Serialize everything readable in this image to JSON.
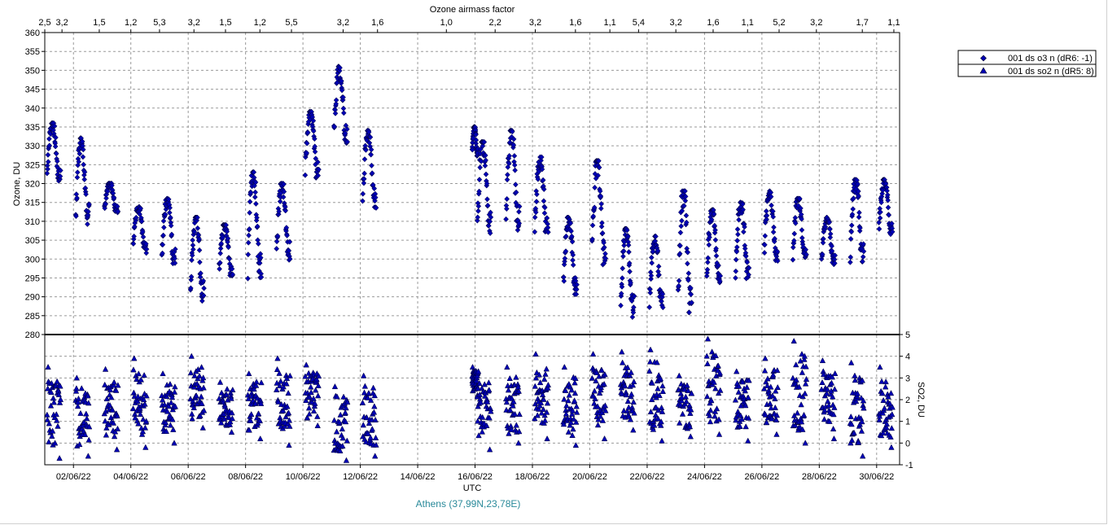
{
  "chart_data": {
    "type": "scatter",
    "top_axis_title": "Ozone airmass factor",
    "top_axis_labels": [
      {
        "label": "2,5",
        "day": 1.0
      },
      {
        "label": "3,2",
        "day": 1.6
      },
      {
        "label": "1,5",
        "day": 2.9
      },
      {
        "label": "1,2",
        "day": 4.0
      },
      {
        "label": "5,3",
        "day": 5.0
      },
      {
        "label": "3,2",
        "day": 6.2
      },
      {
        "label": "1,5",
        "day": 7.3
      },
      {
        "label": "1,2",
        "day": 8.5
      },
      {
        "label": "5,5",
        "day": 9.6
      },
      {
        "label": "3,2",
        "day": 11.4
      },
      {
        "label": "1,6",
        "day": 12.6
      },
      {
        "label": "1,0",
        "day": 15.0
      },
      {
        "label": "2,2",
        "day": 16.7
      },
      {
        "label": "3,2",
        "day": 18.1
      },
      {
        "label": "1,6",
        "day": 19.5
      },
      {
        "label": "1,1",
        "day": 20.7
      },
      {
        "label": "5,4",
        "day": 21.7
      },
      {
        "label": "3,2",
        "day": 23.0
      },
      {
        "label": "1,6",
        "day": 24.3
      },
      {
        "label": "1,1",
        "day": 25.5
      },
      {
        "label": "5,2",
        "day": 26.6
      },
      {
        "label": "3,2",
        "day": 27.9
      },
      {
        "label": "1,7",
        "day": 29.5
      },
      {
        "label": "1,1",
        "day": 30.6
      }
    ],
    "x_axis_title": "UTC",
    "x_range_days": [
      1.0,
      30.8
    ],
    "x_ticks": [
      {
        "label": "02/06/22",
        "day": 2
      },
      {
        "label": "04/06/22",
        "day": 4
      },
      {
        "label": "06/06/22",
        "day": 6
      },
      {
        "label": "08/06/22",
        "day": 8
      },
      {
        "label": "10/06/22",
        "day": 10
      },
      {
        "label": "12/06/22",
        "day": 12
      },
      {
        "label": "14/06/22",
        "day": 14
      },
      {
        "label": "16/06/22",
        "day": 16
      },
      {
        "label": "18/06/22",
        "day": 18
      },
      {
        "label": "20/06/22",
        "day": 20
      },
      {
        "label": "22/06/22",
        "day": 22
      },
      {
        "label": "24/06/22",
        "day": 24
      },
      {
        "label": "26/06/22",
        "day": 26
      },
      {
        "label": "28/06/22",
        "day": 28
      },
      {
        "label": "30/06/22",
        "day": 30
      }
    ],
    "ozone_axis": {
      "title": "Ozone, DU",
      "min": 280,
      "max": 360,
      "ticks": [
        280,
        285,
        290,
        295,
        300,
        305,
        310,
        315,
        320,
        325,
        330,
        335,
        340,
        345,
        350,
        355,
        360
      ]
    },
    "so2_axis": {
      "title": "SO2, DU",
      "min": -1,
      "max": 5,
      "ticks": [
        -1,
        0,
        1,
        2,
        3,
        4,
        5
      ]
    },
    "grid": true,
    "legend_position": "right",
    "marker_color": "#0000b4",
    "station_label": "Athens (37,99N,23,78E)",
    "series": [
      {
        "name": "001 ds o3  n  (dR6: -1)",
        "marker": "diamond",
        "axis": "ozone",
        "days": [
          {
            "start": 1.08,
            "end": 1.55,
            "low": 320,
            "high": 336
          },
          {
            "start": 2.08,
            "end": 2.55,
            "low": 308,
            "high": 332
          },
          {
            "start": 3.08,
            "end": 3.55,
            "low": 312,
            "high": 320
          },
          {
            "start": 4.08,
            "end": 4.55,
            "low": 301,
            "high": 314
          },
          {
            "start": 5.08,
            "end": 5.55,
            "low": 298,
            "high": 316
          },
          {
            "start": 6.08,
            "end": 6.55,
            "low": 288,
            "high": 311
          },
          {
            "start": 7.08,
            "end": 7.55,
            "low": 295,
            "high": 309
          },
          {
            "start": 8.08,
            "end": 8.55,
            "low": 294,
            "high": 323
          },
          {
            "start": 9.08,
            "end": 9.55,
            "low": 299,
            "high": 320
          },
          {
            "start": 10.08,
            "end": 10.55,
            "low": 321,
            "high": 339
          },
          {
            "start": 11.08,
            "end": 11.55,
            "low": 330,
            "high": 351
          },
          {
            "start": 12.08,
            "end": 12.55,
            "low": 313,
            "high": 334
          },
          {
            "start": 15.9,
            "end": 16.1,
            "low": 327,
            "high": 335
          },
          {
            "start": 16.08,
            "end": 16.55,
            "low": 306,
            "high": 331
          },
          {
            "start": 17.08,
            "end": 17.55,
            "low": 307,
            "high": 334
          },
          {
            "start": 18.08,
            "end": 18.55,
            "low": 305,
            "high": 327
          },
          {
            "start": 19.08,
            "end": 19.55,
            "low": 290,
            "high": 311
          },
          {
            "start": 20.08,
            "end": 20.55,
            "low": 297,
            "high": 326
          },
          {
            "start": 21.08,
            "end": 21.55,
            "low": 284,
            "high": 308
          },
          {
            "start": 22.08,
            "end": 22.55,
            "low": 286,
            "high": 306
          },
          {
            "start": 23.08,
            "end": 23.55,
            "low": 285,
            "high": 318
          },
          {
            "start": 24.08,
            "end": 24.55,
            "low": 293,
            "high": 313
          },
          {
            "start": 25.08,
            "end": 25.55,
            "low": 294,
            "high": 315
          },
          {
            "start": 26.08,
            "end": 26.55,
            "low": 299,
            "high": 318
          },
          {
            "start": 27.08,
            "end": 27.55,
            "low": 298,
            "high": 316
          },
          {
            "start": 28.08,
            "end": 28.55,
            "low": 298,
            "high": 311
          },
          {
            "start": 29.08,
            "end": 29.55,
            "low": 298,
            "high": 321
          },
          {
            "start": 30.08,
            "end": 30.55,
            "low": 306,
            "high": 321
          }
        ]
      },
      {
        "name": "001 ds so2 n (dR5: 8)",
        "marker": "triangle",
        "axis": "so2",
        "days": [
          {
            "start": 1.08,
            "end": 1.55,
            "low": -0.7,
            "high": 3.5
          },
          {
            "start": 2.08,
            "end": 2.55,
            "low": -0.6,
            "high": 3.0
          },
          {
            "start": 3.08,
            "end": 3.55,
            "low": -0.3,
            "high": 3.4
          },
          {
            "start": 4.08,
            "end": 4.55,
            "low": -0.2,
            "high": 3.9
          },
          {
            "start": 5.08,
            "end": 5.55,
            "low": 0.0,
            "high": 3.2
          },
          {
            "start": 6.08,
            "end": 6.55,
            "low": 0.7,
            "high": 4.0
          },
          {
            "start": 7.08,
            "end": 7.55,
            "low": 0.5,
            "high": 2.8
          },
          {
            "start": 8.08,
            "end": 8.55,
            "low": 0.2,
            "high": 3.2
          },
          {
            "start": 9.08,
            "end": 9.55,
            "low": -0.1,
            "high": 3.9
          },
          {
            "start": 10.08,
            "end": 10.55,
            "low": 0.8,
            "high": 3.6
          },
          {
            "start": 11.08,
            "end": 11.55,
            "low": -0.8,
            "high": 2.6
          },
          {
            "start": 12.08,
            "end": 12.55,
            "low": -0.6,
            "high": 3.1
          },
          {
            "start": 15.9,
            "end": 16.1,
            "low": 2.2,
            "high": 3.5
          },
          {
            "start": 16.08,
            "end": 16.55,
            "low": -0.3,
            "high": 3.3
          },
          {
            "start": 17.08,
            "end": 17.55,
            "low": 0.0,
            "high": 3.5
          },
          {
            "start": 18.08,
            "end": 18.55,
            "low": 0.2,
            "high": 4.1
          },
          {
            "start": 19.08,
            "end": 19.55,
            "low": -0.1,
            "high": 3.5
          },
          {
            "start": 20.08,
            "end": 20.55,
            "low": 0.2,
            "high": 4.1
          },
          {
            "start": 21.08,
            "end": 21.55,
            "low": 0.6,
            "high": 4.2
          },
          {
            "start": 22.08,
            "end": 22.55,
            "low": 0.1,
            "high": 4.3
          },
          {
            "start": 23.08,
            "end": 23.55,
            "low": 0.3,
            "high": 3.1
          },
          {
            "start": 24.08,
            "end": 24.55,
            "low": 0.4,
            "high": 4.8
          },
          {
            "start": 25.08,
            "end": 25.55,
            "low": 0.1,
            "high": 3.3
          },
          {
            "start": 26.08,
            "end": 26.55,
            "low": 0.4,
            "high": 3.9
          },
          {
            "start": 27.08,
            "end": 27.55,
            "low": 0.0,
            "high": 4.7
          },
          {
            "start": 28.08,
            "end": 28.55,
            "low": 0.2,
            "high": 3.8
          },
          {
            "start": 29.08,
            "end": 29.55,
            "low": -0.6,
            "high": 3.7
          },
          {
            "start": 30.08,
            "end": 30.55,
            "low": -0.2,
            "high": 3.5
          }
        ]
      }
    ]
  }
}
